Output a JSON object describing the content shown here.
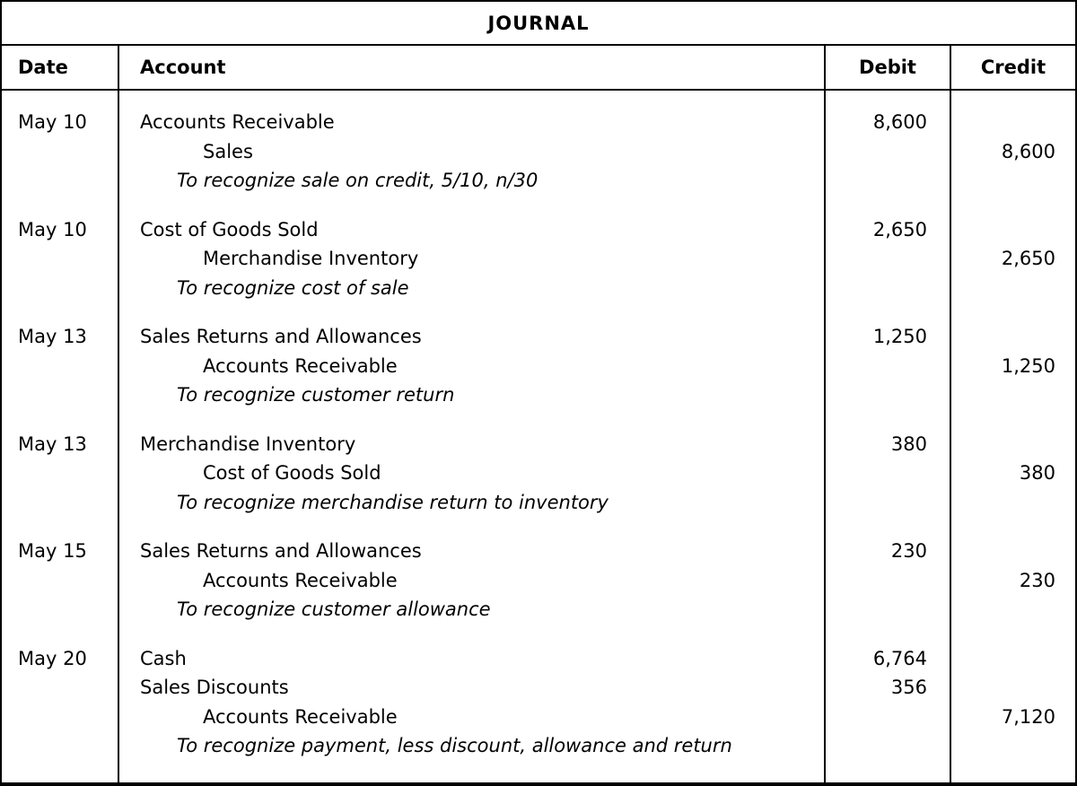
{
  "title": "JOURNAL",
  "columns": {
    "date": "Date",
    "account": "Account",
    "debit": "Debit",
    "credit": "Credit"
  },
  "entries": [
    {
      "date": "May 10",
      "lines": [
        {
          "account": "Accounts Receivable",
          "style": "debit",
          "debit": "8,600",
          "credit": ""
        },
        {
          "account": "Sales",
          "style": "credit",
          "debit": "",
          "credit": "8,600"
        },
        {
          "account": "To recognize sale on credit, 5/10, n/30",
          "style": "note",
          "debit": "",
          "credit": ""
        }
      ]
    },
    {
      "date": "May 10",
      "lines": [
        {
          "account": "Cost of Goods Sold",
          "style": "debit",
          "debit": "2,650",
          "credit": ""
        },
        {
          "account": "Merchandise Inventory",
          "style": "credit",
          "debit": "",
          "credit": "2,650"
        },
        {
          "account": "To recognize cost of sale",
          "style": "note",
          "debit": "",
          "credit": ""
        }
      ]
    },
    {
      "date": "May 13",
      "lines": [
        {
          "account": "Sales Returns and Allowances",
          "style": "debit",
          "debit": "1,250",
          "credit": ""
        },
        {
          "account": "Accounts Receivable",
          "style": "credit",
          "debit": "",
          "credit": "1,250"
        },
        {
          "account": "To recognize customer return",
          "style": "note",
          "debit": "",
          "credit": ""
        }
      ]
    },
    {
      "date": "May 13",
      "lines": [
        {
          "account": "Merchandise Inventory",
          "style": "debit",
          "debit": "380",
          "credit": ""
        },
        {
          "account": "Cost of Goods Sold",
          "style": "credit",
          "debit": "",
          "credit": "380"
        },
        {
          "account": "To recognize merchandise return to inventory",
          "style": "note",
          "debit": "",
          "credit": ""
        }
      ]
    },
    {
      "date": "May 15",
      "lines": [
        {
          "account": "Sales Returns and Allowances",
          "style": "debit",
          "debit": "230",
          "credit": ""
        },
        {
          "account": "Accounts Receivable",
          "style": "credit",
          "debit": "",
          "credit": "230"
        },
        {
          "account": "To recognize customer allowance",
          "style": "note",
          "debit": "",
          "credit": ""
        }
      ]
    },
    {
      "date": "May 20",
      "lines": [
        {
          "account": "Cash",
          "style": "debit",
          "debit": "6,764",
          "credit": ""
        },
        {
          "account": "Sales Discounts",
          "style": "debit",
          "debit": "356",
          "credit": ""
        },
        {
          "account": "Accounts Receivable",
          "style": "credit",
          "debit": "",
          "credit": "7,120"
        },
        {
          "account": "To recognize payment, less discount, allowance and return",
          "style": "note",
          "debit": "",
          "credit": ""
        }
      ]
    }
  ]
}
